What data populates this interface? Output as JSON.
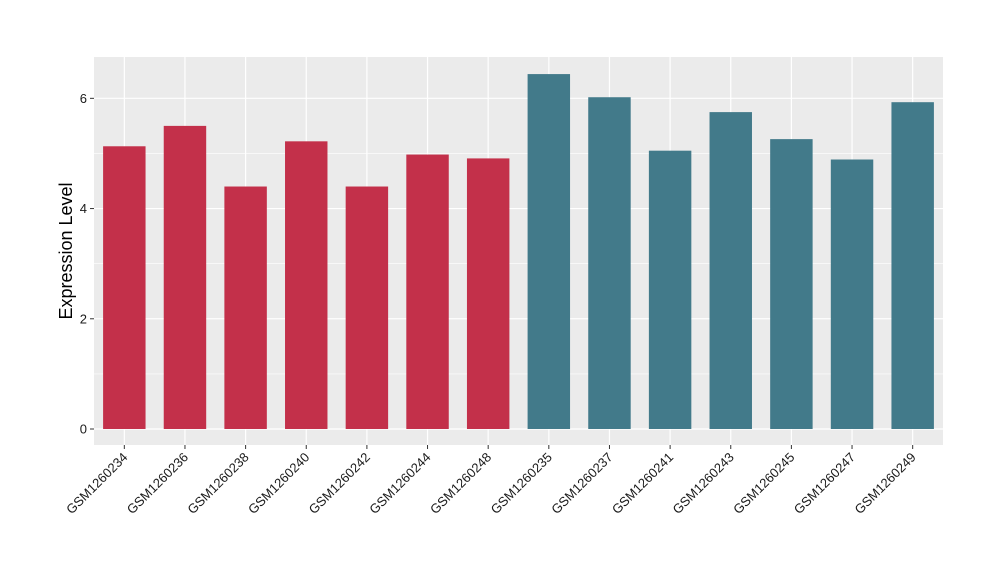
{
  "chart_data": {
    "type": "bar",
    "ylabel": "Expression Level",
    "xlabel": "",
    "ylim": [
      0,
      6.75
    ],
    "yticks": [
      0,
      2,
      4,
      6
    ],
    "grid": true,
    "categories": [
      "GSM1260234",
      "GSM1260236",
      "GSM1260238",
      "GSM1260240",
      "GSM1260242",
      "GSM1260244",
      "GSM1260248",
      "GSM1260235",
      "GSM1260237",
      "GSM1260241",
      "GSM1260243",
      "GSM1260245",
      "GSM1260247",
      "GSM1260249"
    ],
    "values": [
      5.13,
      5.5,
      4.4,
      5.22,
      4.4,
      4.98,
      4.91,
      6.44,
      6.02,
      5.05,
      5.75,
      5.26,
      4.89,
      5.93
    ],
    "bar_colors": [
      "#c3304a",
      "#c3304a",
      "#c3304a",
      "#c3304a",
      "#c3304a",
      "#c3304a",
      "#c3304a",
      "#427a8a",
      "#427a8a",
      "#427a8a",
      "#427a8a",
      "#427a8a",
      "#427a8a",
      "#427a8a"
    ],
    "panel_background": "#ebebeb",
    "gridline_color": "#ffffff"
  }
}
